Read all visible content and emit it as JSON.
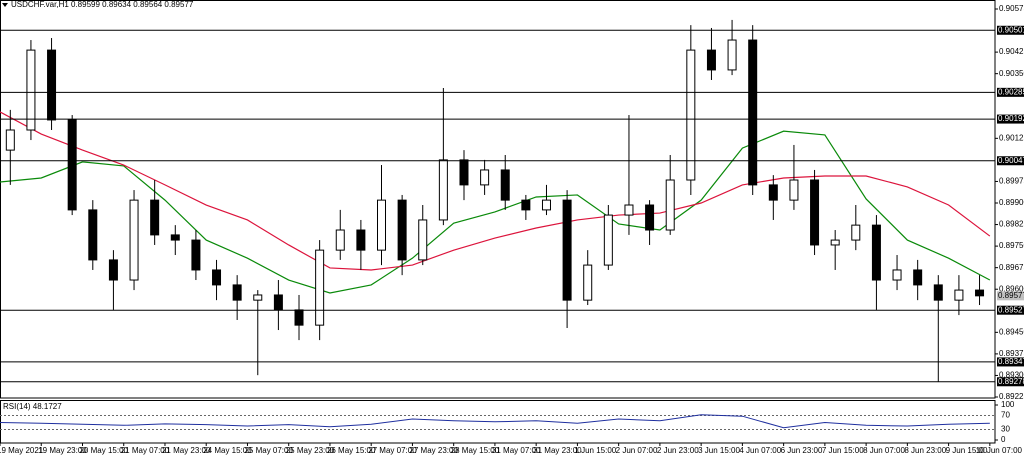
{
  "chart_data": {
    "type": "candlestick",
    "title": "USDCHF.var,H1 0.89599 0.89634 0.89564 0.89577",
    "x": [
      4,
      12,
      20,
      28,
      36,
      44,
      52,
      60,
      68,
      76,
      84,
      92,
      100,
      108,
      116,
      124,
      132,
      140,
      148,
      156,
      164,
      172,
      180,
      188,
      196,
      204,
      212,
      220,
      228,
      236,
      244,
      252,
      260,
      268,
      276,
      284,
      292,
      300,
      308,
      316,
      324,
      332,
      340,
      348,
      356,
      364,
      372,
      380
    ],
    "open": [
      0.90084,
      0.90154,
      0.90432,
      0.90189,
      0.89876,
      0.89702,
      0.89632,
      0.8991,
      0.89789,
      0.89771,
      0.89667,
      0.89615,
      0.89562,
      0.8958,
      0.89528,
      0.89475,
      0.89736,
      0.89806,
      0.89736,
      0.8991,
      0.89702,
      0.89841,
      0.9005,
      0.89963,
      0.90015,
      0.8991,
      0.89876,
      0.8991,
      0.89562,
      0.89684,
      0.89858,
      0.89893,
      0.89806,
      0.8998,
      0.90432,
      0.90363,
      0.90467,
      0.89963,
      0.8991,
      0.8998,
      0.89754,
      0.89771,
      0.89823,
      0.89632,
      0.89667,
      0.89615,
      0.89562,
      0.89597
    ],
    "high": [
      0.90224,
      0.90467,
      0.90474,
      0.90206,
      0.8991,
      0.89736,
      0.89945,
      0.8998,
      0.89823,
      0.89806,
      0.89702,
      0.89649,
      0.89597,
      0.89632,
      0.8958,
      0.89771,
      0.89876,
      0.89841,
      0.90032,
      0.89928,
      0.89893,
      0.903,
      0.90084,
      0.9005,
      0.90067,
      0.89928,
      0.89963,
      0.89945,
      0.89736,
      0.89893,
      0.90206,
      0.8991,
      0.90067,
      0.90519,
      0.90509,
      0.90537,
      0.90519,
      0.89997,
      0.90102,
      0.90015,
      0.89806,
      0.89893,
      0.89858,
      0.89719,
      0.89702,
      0.89649,
      0.89649,
      0.89649
    ],
    "low": [
      0.89963,
      0.90119,
      0.90154,
      0.89858,
      0.89667,
      0.89528,
      0.89597,
      0.89754,
      0.89719,
      0.89632,
      0.89562,
      0.89493,
      0.89301,
      0.89458,
      0.89423,
      0.89423,
      0.89702,
      0.89667,
      0.89684,
      0.89649,
      0.89684,
      0.89823,
      0.8991,
      0.89928,
      0.89876,
      0.89841,
      0.89858,
      0.89465,
      0.89545,
      0.89667,
      0.89789,
      0.89754,
      0.89789,
      0.89928,
      0.90328,
      0.90345,
      0.89928,
      0.89841,
      0.89876,
      0.89719,
      0.89667,
      0.89736,
      0.89528,
      0.89597,
      0.89562,
      0.89278,
      0.8951,
      0.89545
    ],
    "close": [
      0.90154,
      0.90432,
      0.90189,
      0.89876,
      0.89702,
      0.89632,
      0.8991,
      0.89789,
      0.89771,
      0.89667,
      0.89615,
      0.89562,
      0.8958,
      0.89528,
      0.89475,
      0.89736,
      0.89806,
      0.89736,
      0.8991,
      0.89702,
      0.89841,
      0.9005,
      0.89963,
      0.90015,
      0.8991,
      0.89876,
      0.8991,
      0.89562,
      0.89684,
      0.89858,
      0.89893,
      0.89806,
      0.8998,
      0.90432,
      0.90363,
      0.90467,
      0.89963,
      0.8991,
      0.8998,
      0.89754,
      0.89771,
      0.89823,
      0.89632,
      0.89667,
      0.89615,
      0.89562,
      0.89597,
      0.89577
    ],
    "up_color": "#ffffff",
    "down_color": "#000000",
    "wick_color": "#000000",
    "xlim": [
      0,
      386
    ],
    "xticks": [
      {
        "value": 0,
        "label": "19 May 2021"
      },
      {
        "value": 16,
        "label": "19 May 23:00"
      },
      {
        "value": 32,
        "label": "20 May 15:00"
      },
      {
        "value": 48,
        "label": "21 May 07:00"
      },
      {
        "value": 64,
        "label": "21 May 23:00"
      },
      {
        "value": 80,
        "label": "24 May 15:00"
      },
      {
        "value": 96,
        "label": "25 May 07:00"
      },
      {
        "value": 112,
        "label": "25 May 23:00"
      },
      {
        "value": 128,
        "label": "26 May 15:00"
      },
      {
        "value": 144,
        "label": "27 May 07:00"
      },
      {
        "value": 160,
        "label": "27 May 23:00"
      },
      {
        "value": 176,
        "label": "28 May 15:00"
      },
      {
        "value": 192,
        "label": "31 May 07:00"
      },
      {
        "value": 208,
        "label": "31 May 23:00"
      },
      {
        "value": 224,
        "label": "1 Jun 15:00"
      },
      {
        "value": 240,
        "label": "2 Jun 07:00"
      },
      {
        "value": 256,
        "label": "2 Jun 23:00"
      },
      {
        "value": 272,
        "label": "3 Jun 15:00"
      },
      {
        "value": 288,
        "label": "4 Jun 07:00"
      },
      {
        "value": 304,
        "label": "6 Jun 23:00"
      },
      {
        "value": 320,
        "label": "7 Jun 15:00"
      },
      {
        "value": 336,
        "label": "8 Jun 07:00"
      },
      {
        "value": 352,
        "label": "8 Jun 23:00"
      },
      {
        "value": 368,
        "label": "9 Jun 15:00"
      },
      {
        "value": 384,
        "label": "10 Jun 07:00"
      }
    ],
    "ylim": [
      0.89225,
      0.90575
    ],
    "yticks": [
      0.90575,
      0.90425,
      {
        "value": 0.9035,
        "label": "0.90350"
      },
      0.90125,
      0.89975,
      {
        "value": 0.899,
        "label": "0.89900"
      },
      0.89825,
      {
        "value": 0.8975,
        "label": "0.89750"
      },
      0.89675,
      {
        "value": 0.896,
        "label": "0.89600"
      },
      {
        "value": 0.8945,
        "label": "0.89450"
      },
      0.89375,
      {
        "value": 0.893,
        "label": "0.89300"
      },
      0.89225
    ],
    "levels": {
      "values": [
        0.90501,
        0.90285,
        0.90192,
        0.90047,
        0.89527,
        0.89347,
        0.89278
      ],
      "color": "#000000"
    },
    "current_price": 0.89577,
    "moving_averages": [
      {
        "color": "#0a8a0a",
        "x": [
          0,
          16,
          32,
          48,
          64,
          80,
          96,
          112,
          128,
          144,
          160,
          176,
          192,
          208,
          224,
          240,
          256,
          272,
          288,
          304,
          320,
          336,
          352,
          368,
          384
        ],
        "values": [
          0.89973,
          0.89987,
          0.90043,
          0.90029,
          0.8991,
          0.89771,
          0.89708,
          0.89632,
          0.89587,
          0.89615,
          0.89708,
          0.8983,
          0.89869,
          0.89921,
          0.89928,
          0.89827,
          0.89806,
          0.8991,
          0.90091,
          0.9015,
          0.90137,
          0.89914,
          0.89771,
          0.89708,
          0.89632
        ]
      },
      {
        "color": "#dc143c",
        "x": [
          0,
          16,
          32,
          48,
          64,
          80,
          96,
          112,
          128,
          144,
          160,
          176,
          192,
          208,
          224,
          240,
          256,
          272,
          288,
          304,
          320,
          336,
          352,
          368,
          384
        ],
        "values": [
          0.90217,
          0.9014,
          0.90084,
          0.90032,
          0.89963,
          0.89893,
          0.89841,
          0.89754,
          0.89674,
          0.89667,
          0.89684,
          0.89736,
          0.89778,
          0.89813,
          0.89841,
          0.89858,
          0.89865,
          0.899,
          0.89963,
          0.89987,
          0.89994,
          0.89994,
          0.89956,
          0.89893,
          0.89785
        ]
      }
    ],
    "rsi": {
      "label": "RSI(14) 48.1727",
      "color": "#1f2f9f",
      "ylim": [
        0,
        100
      ],
      "yticks": [
        100,
        70,
        30,
        0
      ],
      "x": [
        0,
        16,
        32,
        48,
        64,
        80,
        96,
        112,
        128,
        144,
        160,
        176,
        192,
        208,
        224,
        240,
        256,
        272,
        288,
        304,
        320,
        336,
        352,
        368,
        384
      ],
      "values": [
        50,
        48,
        45,
        42,
        46,
        44,
        40,
        44,
        38,
        45,
        60,
        55,
        52,
        55,
        48,
        60,
        55,
        72,
        68,
        35,
        50,
        42,
        40,
        45,
        48
      ]
    }
  }
}
